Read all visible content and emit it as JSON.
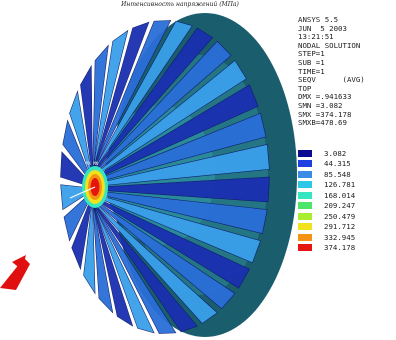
{
  "title": "Интенсивность напряжений (МПа)",
  "solver_info": [
    "ANSYS 5.5",
    "JUN  5 2003",
    "13:21:51",
    "NODAL SOLUTION",
    "STEP=1",
    "SUB =1",
    "TIME=1",
    "SEQV      (AVG)",
    "TOP",
    "DMX =.941633",
    "SMN =3.082",
    "SMX =374.178",
    "SMXB=478.69"
  ],
  "legend": [
    {
      "value": "3.082",
      "color": "#0b0b8f"
    },
    {
      "value": "44.315",
      "color": "#1f3fe0"
    },
    {
      "value": "85.548",
      "color": "#3a8be6"
    },
    {
      "value": "126.781",
      "color": "#2fc6e8"
    },
    {
      "value": "168.014",
      "color": "#35e6c0"
    },
    {
      "value": "209.247",
      "color": "#4ee66a"
    },
    {
      "value": "250.479",
      "color": "#a8ee2e"
    },
    {
      "value": "291.712",
      "color": "#f0e21c"
    },
    {
      "value": "332.945",
      "color": "#f59314"
    },
    {
      "value": "374.178",
      "color": "#e4160f"
    }
  ],
  "node_labels": "MX MN",
  "colors": {
    "disk_outer": "#1a5e6e",
    "disk_inner": "#2a8a9a",
    "blade_dark": "#1a2fb0",
    "blade_mid": "#2a6ed8",
    "blade_light": "#3aa0ea",
    "max_region": "#e4160f",
    "arrow": "#e01010"
  }
}
